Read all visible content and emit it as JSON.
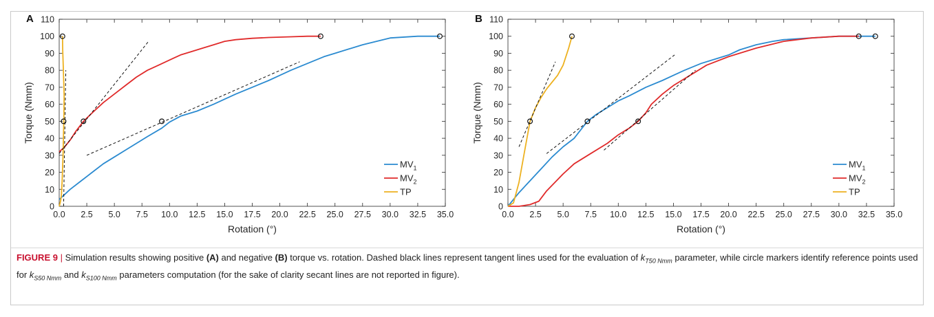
{
  "colors": {
    "mv1": "#2a8ad0",
    "mv2": "#e02a2a",
    "tp": "#edb120",
    "tangent": "#111111",
    "marker": "#111111",
    "caption_label": "#c8102e"
  },
  "legend_items": [
    "MV1",
    "MV2",
    "TP"
  ],
  "caption": {
    "label": "FIGURE 9",
    "separator": "|",
    "t1": " Simulation results showing positive ",
    "a": "(A)",
    "t2": " and negative ",
    "b": "(B)",
    "t3": " torque vs. rotation. Dashed black lines represent tangent lines used for the evaluation of ",
    "k_t": "k",
    "k_t_sub": "T50 Nmm",
    "t4": " parameter, while circle markers identify reference points used for ",
    "k_s50": "k",
    "k_s50_sub": "S50 Nmm",
    "t5": " and ",
    "k_s100": "k",
    "k_s100_sub": "S100 Nmm",
    "t6": " parameters computation (for the sake of clarity secant lines are not reported in figure)."
  },
  "chart_data": [
    {
      "panel": "A",
      "type": "line",
      "xlabel": "Rotation (°)",
      "ylabel": "Torque (Nmm)",
      "xlim": [
        0,
        35
      ],
      "ylim": [
        0,
        110
      ],
      "xticks": [
        0,
        2.5,
        5,
        7.5,
        10,
        12.5,
        15,
        17.5,
        20,
        22.5,
        25,
        27.5,
        30,
        32.5,
        35
      ],
      "xtick_labels": [
        "0.0",
        "2.5",
        "5.0",
        "7.5",
        "10.0",
        "12.5",
        "15.0",
        "17.5",
        "20.0",
        "22.5",
        "25.0",
        "27.5",
        "30.0",
        "32.5",
        "35.0"
      ],
      "yticks": [
        0,
        10,
        20,
        30,
        40,
        50,
        60,
        70,
        80,
        90,
        100,
        110
      ],
      "grid": false,
      "legend_position": "bottom-right",
      "series": [
        {
          "name": "MV1",
          "color": "#2a8ad0",
          "x": [
            0,
            1,
            2,
            3,
            4,
            5,
            6,
            7,
            8,
            9.3,
            10,
            11,
            12.5,
            14,
            15,
            16,
            17.5,
            19,
            20,
            21,
            22.5,
            24,
            25,
            27.5,
            30,
            32.5,
            33.5,
            34.5
          ],
          "y": [
            4,
            10,
            15,
            20,
            25,
            29,
            33,
            37,
            41,
            46,
            49.5,
            53,
            56,
            60,
            63,
            66,
            70,
            74,
            77,
            80,
            84,
            88,
            90,
            95,
            99,
            100,
            100,
            100
          ]
        },
        {
          "name": "MV2",
          "color": "#e02a2a",
          "x": [
            0,
            0.5,
            1,
            1.5,
            2.2,
            3,
            4,
            5,
            6,
            7,
            8,
            9,
            10,
            11,
            12,
            13,
            14,
            15,
            16,
            17.5,
            19,
            20,
            21,
            22.5,
            23.7
          ],
          "y": [
            32,
            35,
            39,
            44,
            50,
            55,
            61,
            66,
            71,
            76,
            80,
            83,
            86,
            89,
            91,
            93,
            95,
            97,
            98,
            98.8,
            99.3,
            99.5,
            99.7,
            100,
            100
          ]
        },
        {
          "name": "TP",
          "color": "#edb120",
          "x": [
            0,
            0.05,
            0.12,
            0.2,
            0.27,
            0.35,
            0.42,
            0.45,
            0.38,
            0.32,
            0.3
          ],
          "y": [
            0,
            1,
            3,
            6,
            15,
            30,
            50,
            65,
            80,
            92,
            100
          ]
        }
      ],
      "tangent_lines": [
        {
          "x": [
            0,
            8.1
          ],
          "y": [
            31,
            97
          ]
        },
        {
          "x": [
            0.4,
            0.6
          ],
          "y": [
            0,
            80
          ]
        },
        {
          "x": [
            2.5,
            21.8
          ],
          "y": [
            30,
            85
          ]
        }
      ],
      "markers": [
        {
          "x": 0.3,
          "y": 100
        },
        {
          "x": 0.4,
          "y": 50
        },
        {
          "x": 2.2,
          "y": 50
        },
        {
          "x": 9.3,
          "y": 50
        },
        {
          "x": 23.7,
          "y": 100
        },
        {
          "x": 34.5,
          "y": 100
        }
      ]
    },
    {
      "panel": "B",
      "type": "line",
      "xlabel": "Rotation (°)",
      "ylabel": "Torque (Nmm)",
      "xlim": [
        0,
        35
      ],
      "ylim": [
        0,
        110
      ],
      "xticks": [
        0,
        2.5,
        5,
        7.5,
        10,
        12.5,
        15,
        17.5,
        20,
        22.5,
        25,
        27.5,
        30,
        32.5,
        35
      ],
      "xtick_labels": [
        "0.0",
        "2.5",
        "5.0",
        "7.5",
        "10.0",
        "12.5",
        "15.0",
        "17.5",
        "20.0",
        "22.5",
        "25.0",
        "27.5",
        "30.0",
        "32.5",
        "35.0"
      ],
      "yticks": [
        0,
        10,
        20,
        30,
        40,
        50,
        60,
        70,
        80,
        90,
        100,
        110
      ],
      "grid": false,
      "legend_position": "bottom-right",
      "series": [
        {
          "name": "MV1",
          "color": "#2a8ad0",
          "x": [
            0,
            0.5,
            1,
            2,
            3,
            4,
            5,
            6,
            7.2,
            8,
            9,
            10,
            11,
            12.5,
            14,
            15,
            16,
            17.5,
            19,
            20,
            21,
            22.5,
            24,
            25,
            27.5,
            30,
            32,
            33.3
          ],
          "y": [
            0,
            4,
            8,
            15,
            22,
            29,
            35,
            40,
            50,
            54,
            58,
            62,
            65,
            70,
            74,
            77,
            80,
            84,
            87,
            89,
            92,
            95,
            97,
            98,
            99,
            100,
            100,
            100
          ]
        },
        {
          "name": "MV2",
          "color": "#e02a2a",
          "x": [
            0,
            1,
            2,
            2.8,
            3.5,
            5,
            6,
            7.5,
            9,
            10,
            11,
            11.8,
            12.5,
            13,
            14,
            15,
            16,
            17,
            18,
            20,
            22.5,
            25,
            27.5,
            30,
            31.8
          ],
          "y": [
            0,
            0,
            1,
            3,
            9,
            19,
            25,
            31,
            37,
            42,
            46,
            50,
            55,
            60,
            66,
            71,
            75,
            79,
            83,
            88,
            93,
            97,
            99,
            100,
            100
          ]
        },
        {
          "name": "TP",
          "color": "#edb120",
          "x": [
            0,
            0.5,
            1,
            1.5,
            2,
            2.5,
            3,
            3.5,
            4,
            4.5,
            5,
            5.5,
            5.8
          ],
          "y": [
            0,
            2,
            14,
            32,
            50,
            58,
            64,
            69,
            73,
            77,
            83,
            93,
            100
          ]
        }
      ],
      "tangent_lines": [
        {
          "x": [
            1,
            4.3
          ],
          "y": [
            35,
            85
          ]
        },
        {
          "x": [
            3.5,
            15.1
          ],
          "y": [
            31,
            89
          ]
        },
        {
          "x": [
            8.7,
            17
          ],
          "y": [
            33,
            80
          ]
        }
      ],
      "markers": [
        {
          "x": 2,
          "y": 50
        },
        {
          "x": 5.8,
          "y": 100
        },
        {
          "x": 7.2,
          "y": 50
        },
        {
          "x": 11.8,
          "y": 50
        },
        {
          "x": 31.8,
          "y": 100
        },
        {
          "x": 33.3,
          "y": 100
        }
      ]
    }
  ]
}
